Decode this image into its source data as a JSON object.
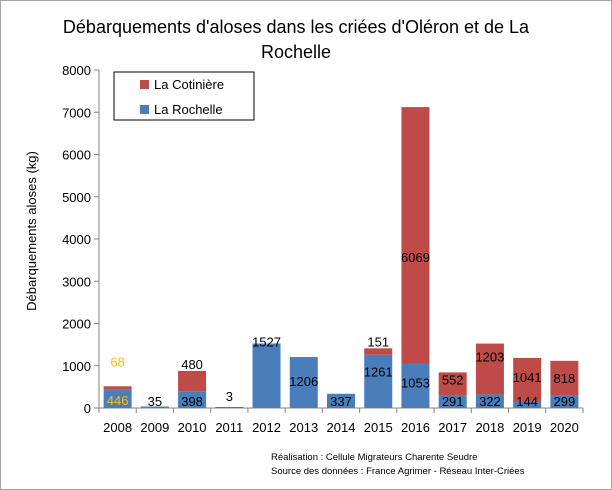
{
  "chart_data": {
    "type": "bar",
    "stacked": true,
    "title": "Débarquements d'aloses dans les criées d'Oléron et de La Rochelle",
    "xlabel": "",
    "ylabel": "Débarquements aloses (kg)",
    "ylim": [
      0,
      8000
    ],
    "yticks": [
      0,
      1000,
      2000,
      3000,
      4000,
      5000,
      6000,
      7000,
      8000
    ],
    "grid": false,
    "legend": "top-left",
    "categories": [
      "2008",
      "2009",
      "2010",
      "2011",
      "2012",
      "2013",
      "2014",
      "2015",
      "2016",
      "2017",
      "2018",
      "2019",
      "2020"
    ],
    "series": [
      {
        "name": "La Rochelle",
        "color": "#4a7ebb",
        "values": [
          446,
          35,
          398,
          0,
          1527,
          1206,
          337,
          1261,
          1053,
          291,
          322,
          144,
          299
        ],
        "labels": [
          "446",
          "35",
          "398",
          "",
          "1527",
          "1206",
          "337",
          "1261",
          "1053",
          "291",
          "322",
          "144",
          "299"
        ]
      },
      {
        "name": "La Cotinière",
        "color": "#be4b48",
        "values": [
          68,
          0,
          480,
          3,
          0,
          0,
          0,
          151,
          6069,
          552,
          1203,
          1041,
          818
        ],
        "labels": [
          "68",
          "",
          "480",
          "3",
          "",
          "",
          "",
          "151",
          "6069",
          "552",
          "1203",
          "1041",
          "818"
        ]
      }
    ]
  },
  "credits": {
    "line1": "Réalisation : Cellule Migrateurs Charente Seudre",
    "line2": "Source des données : France Agrimer - Réseau Inter-Criées"
  }
}
